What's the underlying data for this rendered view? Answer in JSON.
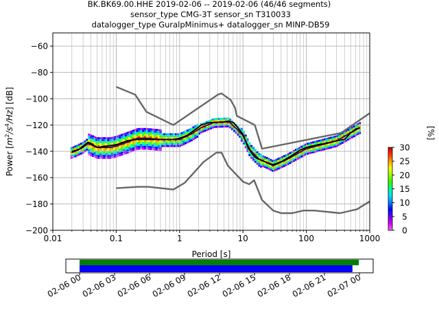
{
  "title_lines": [
    "BK.BK69.00.HHE   2019-02-06 -- 2019-02-06  (46/46 segments)",
    "sensor_type CMG-3T sensor_sn T310033",
    "datalogger_type GuralpMinimus+ datalogger_sn MINP-DB59"
  ],
  "chart_data": {
    "type": "heatmap",
    "x_scale": "log",
    "xlabel": "Period [s]",
    "ylabel_prefix": "Power [",
    "ylabel_m": "m",
    "ylabel_s": "/s",
    "ylabel_hz": "/Hz",
    "ylabel_suffix": "] [dB]",
    "ylabel_exp2": "2",
    "ylabel_exp4": "4",
    "xlim": [
      0.01,
      1000
    ],
    "ylim": [
      -200,
      -50
    ],
    "x_ticks": [
      {
        "value": 0.01,
        "label": "0.01"
      },
      {
        "value": 0.1,
        "label": "0.1"
      },
      {
        "value": 1,
        "label": "1"
      },
      {
        "value": 10,
        "label": "10"
      },
      {
        "value": 100,
        "label": "100"
      },
      {
        "value": 1000,
        "label": "1000"
      }
    ],
    "y_ticks": [
      {
        "value": -60,
        "label": "−60"
      },
      {
        "value": -80,
        "label": "−80"
      },
      {
        "value": -100,
        "label": "−100"
      },
      {
        "value": -120,
        "label": "−120"
      },
      {
        "value": -140,
        "label": "−140"
      },
      {
        "value": -160,
        "label": "−160"
      },
      {
        "value": -180,
        "label": "−180"
      },
      {
        "value": -200,
        "label": "−200"
      }
    ],
    "grid": true,
    "nhnm": {
      "color": "#666666",
      "points": [
        [
          0.1,
          -168
        ],
        [
          0.22,
          -167
        ],
        [
          0.32,
          -167
        ],
        [
          0.8,
          -169
        ],
        [
          1.2,
          -164
        ],
        [
          2.4,
          -148
        ],
        [
          3.8,
          -141
        ],
        [
          4.6,
          -141
        ],
        [
          5.8,
          -151
        ],
        [
          10,
          -163
        ],
        [
          12.5,
          -165
        ],
        [
          15,
          -162
        ],
        [
          20,
          -177
        ],
        [
          30,
          -185
        ],
        [
          40,
          -187
        ],
        [
          60,
          -187
        ],
        [
          90,
          -185
        ],
        [
          135,
          -185
        ],
        [
          340,
          -187
        ],
        [
          630,
          -184
        ],
        [
          1000,
          -178
        ]
      ]
    },
    "nlnm": {
      "color": "#666666",
      "points": [
        [
          0.1,
          -91
        ],
        [
          0.2,
          -97
        ],
        [
          0.3,
          -110
        ],
        [
          0.8,
          -120
        ],
        [
          4,
          -97
        ],
        [
          4.6,
          -96
        ],
        [
          6.4,
          -101
        ],
        [
          7.5,
          -107
        ],
        [
          8,
          -113
        ],
        [
          15.4,
          -120
        ],
        [
          20,
          -138
        ],
        [
          354,
          -126
        ],
        [
          1000,
          -111
        ]
      ]
    },
    "median": {
      "color": "#000000",
      "points": [
        [
          0.02,
          -140
        ],
        [
          0.025,
          -139
        ],
        [
          0.03,
          -136
        ],
        [
          0.036,
          -133
        ],
        [
          0.04,
          -134
        ],
        [
          0.05,
          -137
        ],
        [
          0.07,
          -136
        ],
        [
          0.1,
          -135
        ],
        [
          0.15,
          -132
        ],
        [
          0.2,
          -131
        ],
        [
          0.3,
          -131
        ],
        [
          0.5,
          -131
        ],
        [
          0.8,
          -131
        ],
        [
          1,
          -130
        ],
        [
          1.3,
          -128
        ],
        [
          1.7,
          -124
        ],
        [
          2.2,
          -120
        ],
        [
          3,
          -118
        ],
        [
          4,
          -118
        ],
        [
          5,
          -117.5
        ],
        [
          6,
          -117
        ],
        [
          7,
          -118
        ],
        [
          8,
          -121
        ],
        [
          10,
          -127
        ],
        [
          12,
          -137
        ],
        [
          14,
          -142
        ],
        [
          16,
          -145
        ],
        [
          20,
          -147
        ],
        [
          25,
          -149
        ],
        [
          30,
          -150
        ],
        [
          40,
          -148
        ],
        [
          60,
          -143
        ],
        [
          80,
          -139
        ],
        [
          100,
          -137
        ],
        [
          150,
          -135
        ],
        [
          200,
          -134
        ],
        [
          300,
          -132
        ],
        [
          400,
          -131
        ],
        [
          500,
          -126
        ],
        [
          600,
          -123
        ],
        [
          700,
          -122
        ]
      ]
    },
    "mode": {
      "color": "#3a0a5e",
      "points": [
        [
          0.02,
          -141
        ],
        [
          0.03,
          -137
        ],
        [
          0.036,
          -134
        ],
        [
          0.05,
          -137
        ],
        [
          0.08,
          -137
        ],
        [
          0.1,
          -136
        ],
        [
          0.15,
          -133
        ],
        [
          0.22,
          -130
        ],
        [
          0.3,
          -130
        ],
        [
          0.5,
          -131
        ],
        [
          1,
          -131
        ],
        [
          1.5,
          -127
        ],
        [
          2.2,
          -122
        ],
        [
          3.5,
          -118
        ],
        [
          6,
          -117.5
        ],
        [
          8,
          -123
        ],
        [
          10,
          -128
        ],
        [
          13,
          -139
        ],
        [
          18,
          -146
        ],
        [
          25,
          -149
        ],
        [
          30,
          -151
        ],
        [
          50,
          -146
        ],
        [
          100,
          -138
        ],
        [
          300,
          -132
        ],
        [
          700,
          -122
        ]
      ]
    },
    "colorbar": {
      "label": "[%]",
      "range": [
        0,
        30
      ],
      "ticks": [
        {
          "value": 0,
          "label": "0"
        },
        {
          "value": 5,
          "label": "5"
        },
        {
          "value": 10,
          "label": "10"
        },
        {
          "value": 15,
          "label": "15"
        },
        {
          "value": 20,
          "label": "20"
        },
        {
          "value": 25,
          "label": "25"
        },
        {
          "value": 30,
          "label": "30"
        }
      ],
      "colors": [
        "#ff66ff",
        "#d000ff",
        "#6a00ff",
        "#0000ff",
        "#0080ff",
        "#00e0ff",
        "#00ff90",
        "#30ff00",
        "#a0ff00",
        "#ffff00",
        "#ffa000",
        "#ff3000",
        "#c00000"
      ]
    },
    "timeline": {
      "range_hours": [
        0,
        24
      ],
      "ticks": [
        {
          "value": 0,
          "label": "02-06 00"
        },
        {
          "value": 3,
          "label": "02-06 03"
        },
        {
          "value": 6,
          "label": "02-06 06"
        },
        {
          "value": 9,
          "label": "02-06 09"
        },
        {
          "value": 12,
          "label": "02-06 12"
        },
        {
          "value": 15,
          "label": "02-06 15"
        },
        {
          "value": 18,
          "label": "02-06 18"
        },
        {
          "value": 21,
          "label": "02-06 21"
        },
        {
          "value": 24,
          "label": "02-07 00"
        }
      ],
      "bars": [
        {
          "name": "available-data",
          "color": "#008000",
          "start": 0.0,
          "end": 23.95
        },
        {
          "name": "used-data",
          "color": "#0000ff",
          "start": 0.0,
          "end": 23.4
        }
      ]
    }
  }
}
